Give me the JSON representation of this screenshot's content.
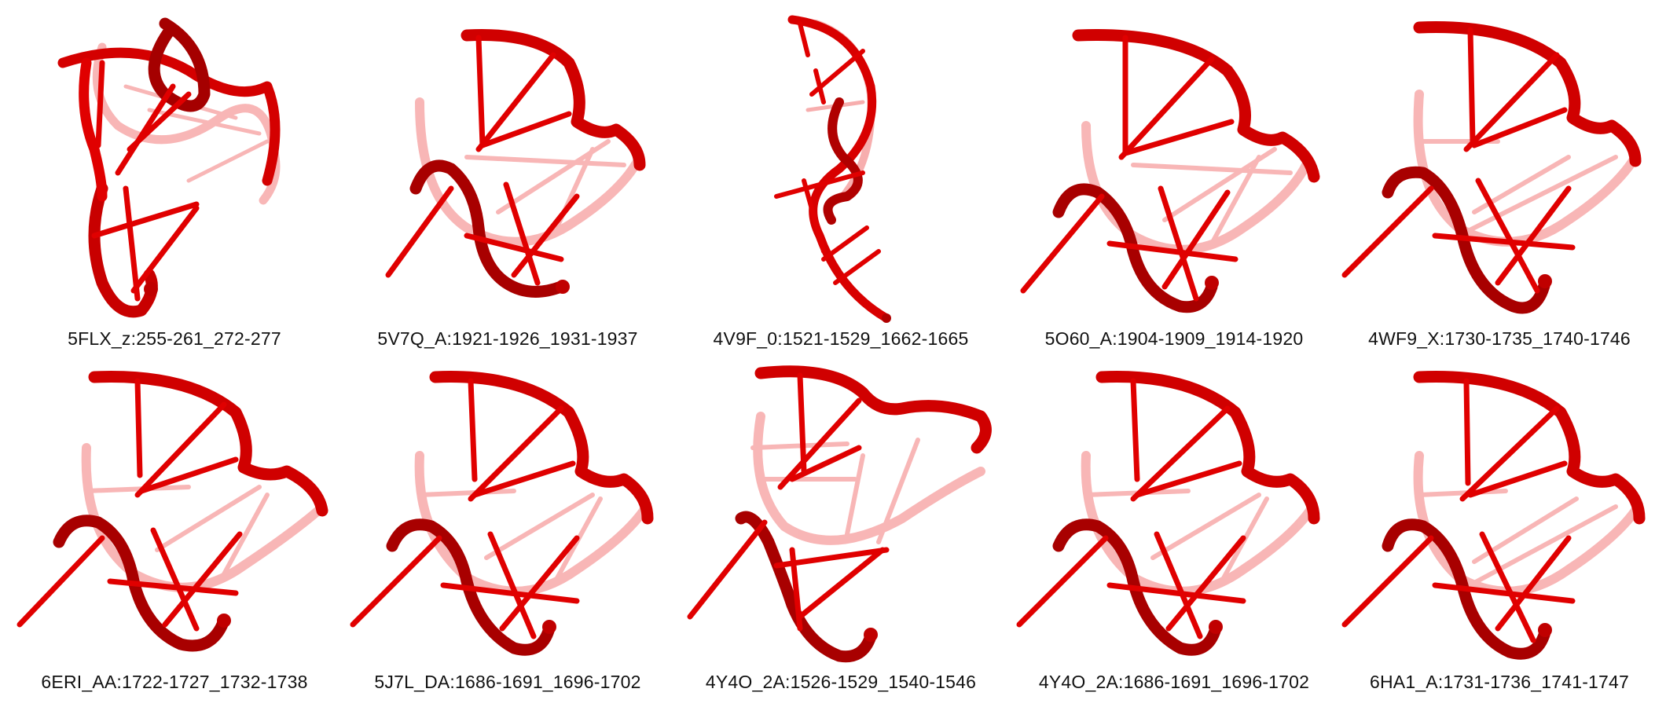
{
  "structure_color": "#e00000",
  "structure_dark": "#9a0000",
  "structure_light": "#f08080",
  "panels": [
    {
      "caption": "5FLX_z:255-261_272-277"
    },
    {
      "caption": "5V7Q_A:1921-1926_1931-1937"
    },
    {
      "caption": "4V9F_0:1521-1529_1662-1665"
    },
    {
      "caption": "5O60_A:1904-1909_1914-1920"
    },
    {
      "caption": "4WF9_X:1730-1735_1740-1746"
    },
    {
      "caption": "6ERI_AA:1722-1727_1732-1738"
    },
    {
      "caption": "5J7L_DA:1686-1691_1696-1702"
    },
    {
      "caption": "4Y4O_2A:1526-1529_1540-1546"
    },
    {
      "caption": "4Y4O_2A:1686-1691_1696-1702"
    },
    {
      "caption": "6HA1_A:1731-1736_1741-1747"
    }
  ]
}
